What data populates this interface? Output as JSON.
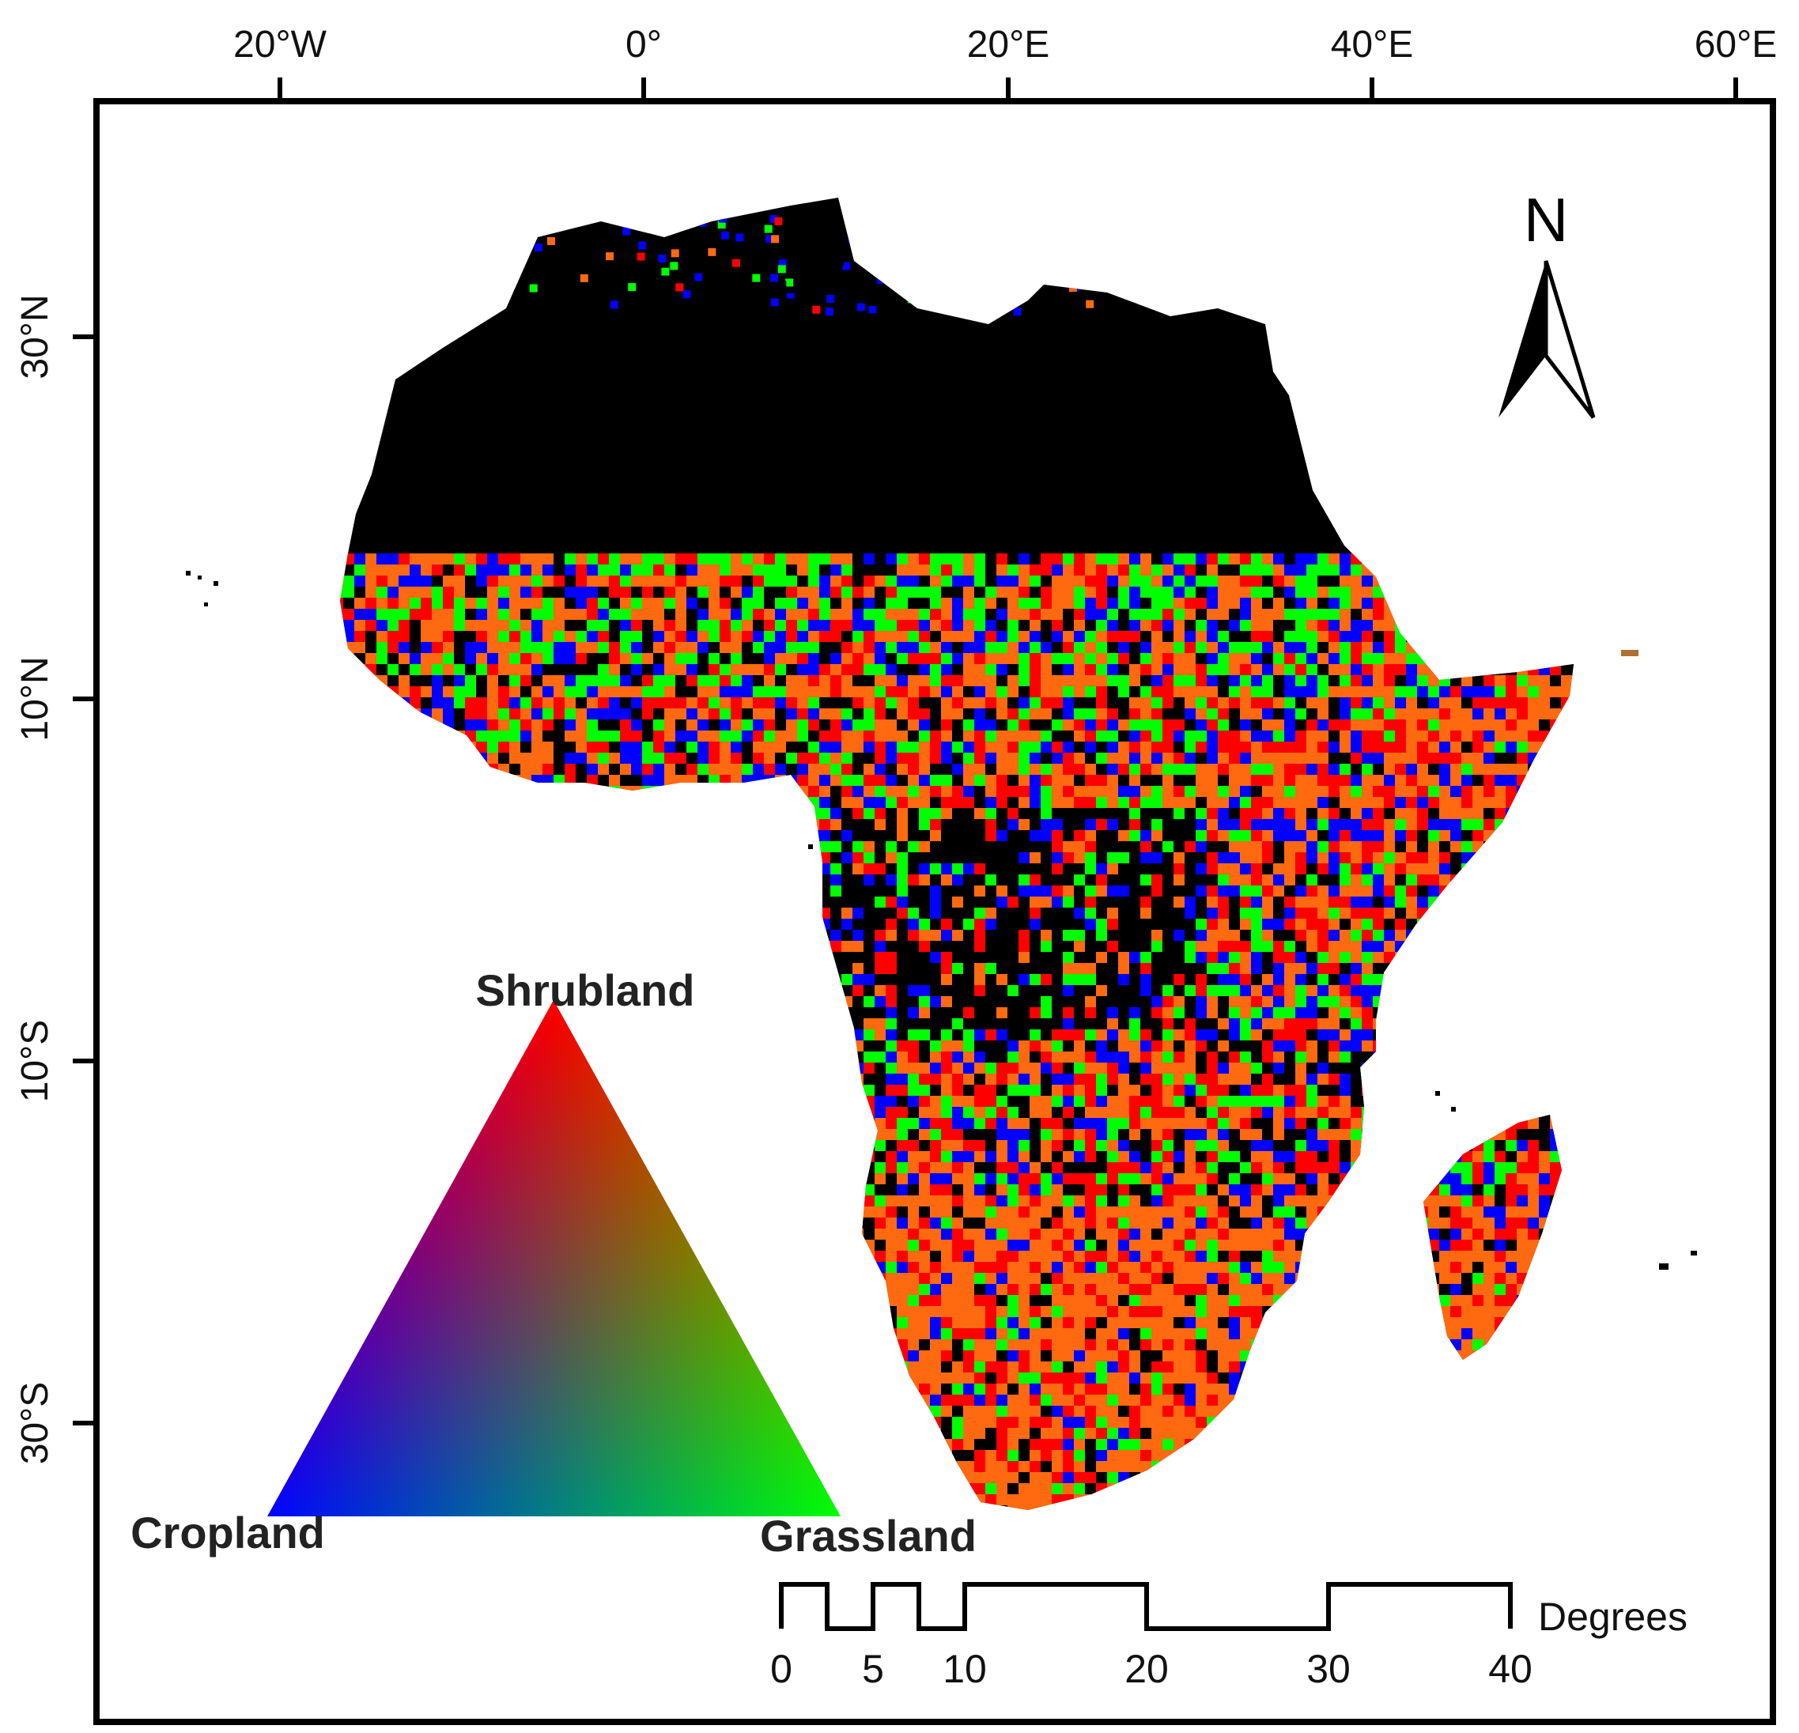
{
  "map": {
    "region": "Africa",
    "longitude_ticks": [
      "20°W",
      "0°",
      "20°E",
      "40°E",
      "60°E"
    ],
    "latitude_ticks": [
      "30°N",
      "10°N",
      "10°S",
      "30°S"
    ],
    "north_arrow": {
      "label": "N"
    }
  },
  "legend": {
    "type": "ternary-color-triangle",
    "vertices": [
      {
        "label": "Shrubland",
        "color": "#ff0000"
      },
      {
        "label": "Cropland",
        "color": "#0000ff"
      },
      {
        "label": "Grassland",
        "color": "#00ff00"
      }
    ]
  },
  "scale_bar": {
    "unit_label": "Degrees",
    "ticks": [
      "0",
      "5",
      "10",
      "20",
      "30",
      "40"
    ]
  },
  "colors": {
    "shrubland": "#ff0000",
    "cropland": "#0000ff",
    "grassland": "#00ff00",
    "no_data_desert": "#000000"
  }
}
